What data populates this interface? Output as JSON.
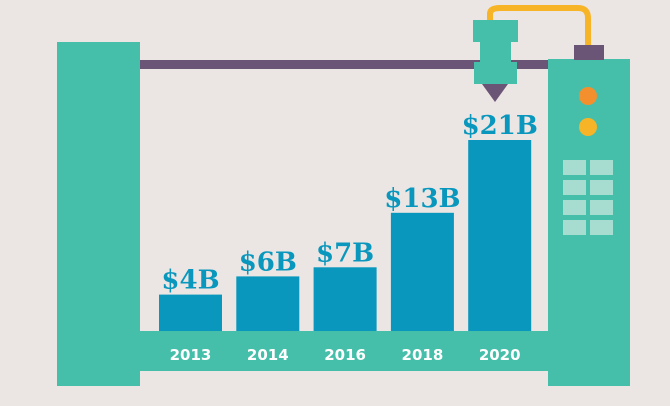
{
  "colors": {
    "background": "#ebe6e3",
    "frame": "#45bfa9",
    "bar": "#0a97bd",
    "value_text": "#0a97bd",
    "year_text": "#ffffff",
    "rail": "#6b5576",
    "filament": "#f6b426",
    "button_orange": "#f48f2d",
    "button_yellow": "#f6b426",
    "grid_cell": "#a7dcd0"
  },
  "icons": [
    "3d-printer-frame",
    "print-nozzle",
    "filament-spool-line",
    "control-buttons",
    "control-grid"
  ],
  "chart_data": {
    "type": "bar",
    "categories": [
      "2013",
      "2014",
      "2016",
      "2018",
      "2020"
    ],
    "values": [
      4,
      6,
      7,
      13,
      21
    ],
    "value_labels": [
      "$4B",
      "$6B",
      "$7B",
      "$13B",
      "$21B"
    ],
    "title": "",
    "xlabel": "",
    "ylabel": "",
    "ylim": [
      0,
      21
    ],
    "grid": false,
    "legend": "none"
  }
}
